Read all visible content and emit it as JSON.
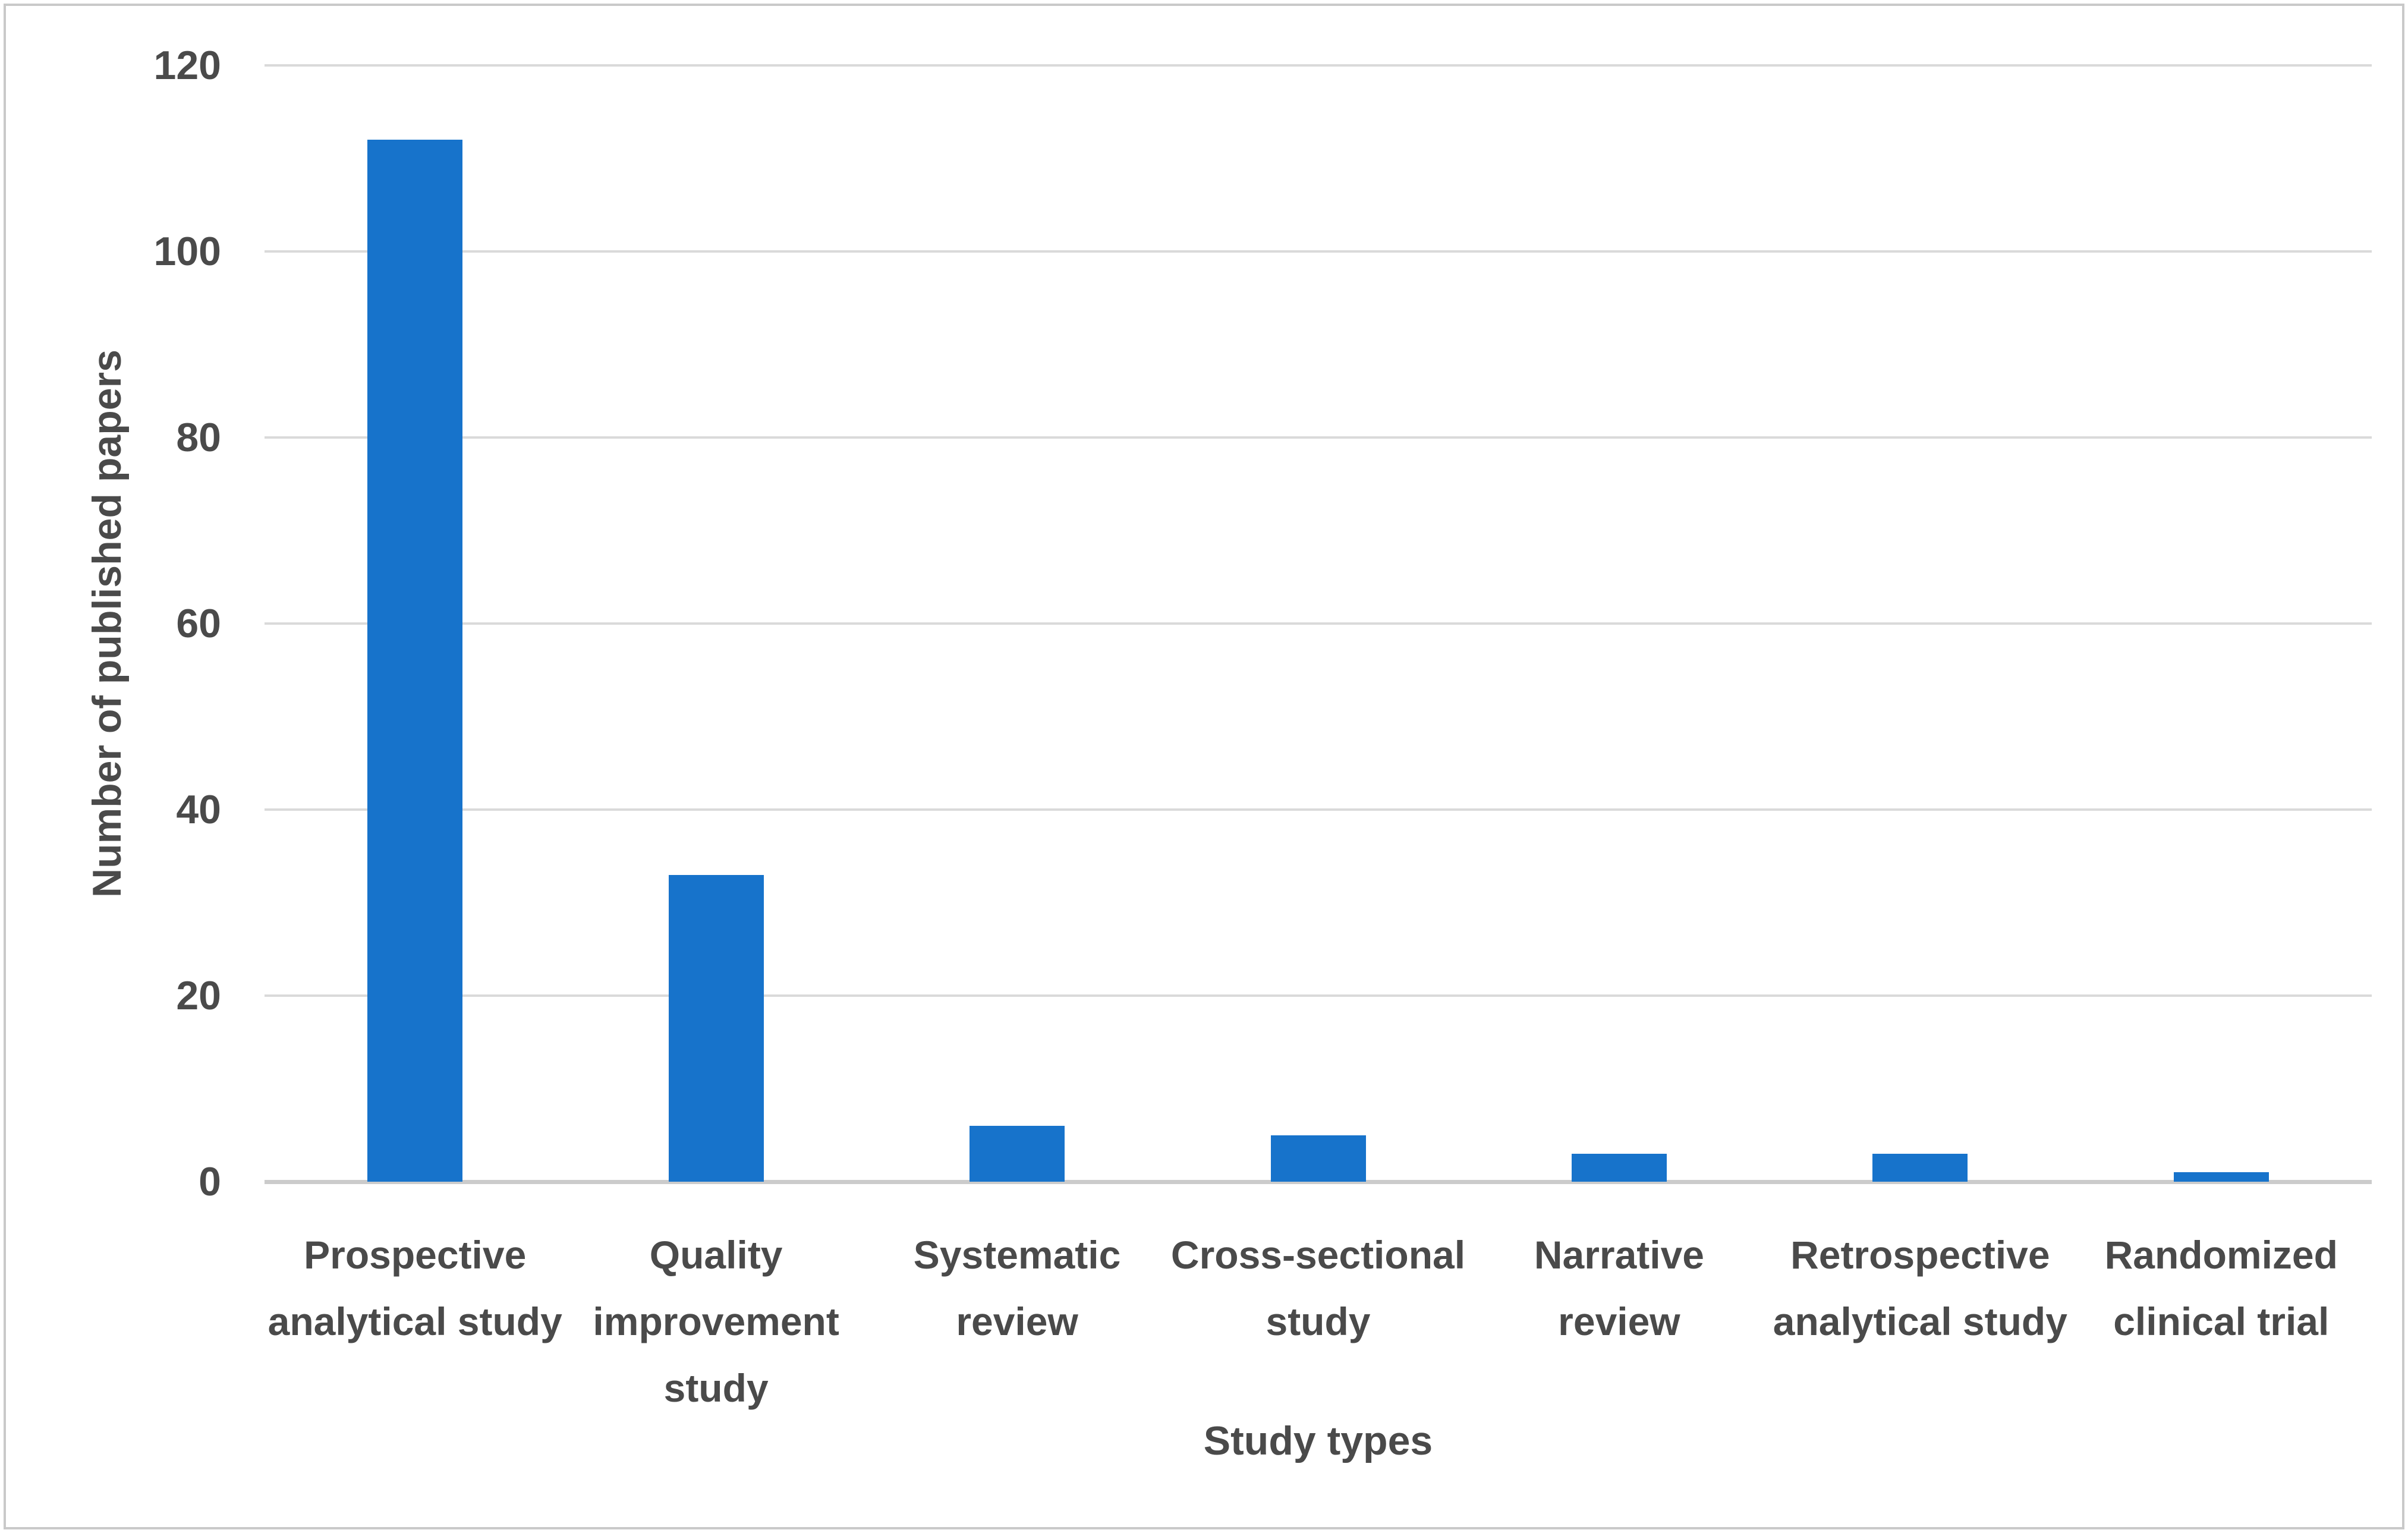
{
  "figure": {
    "background": "#FFFFFF",
    "border_color": "#C9C9C9"
  },
  "chart_data": {
    "type": "bar",
    "title": "",
    "categories": [
      "Prospective analytical study",
      "Quality improvement study",
      "Systematic review",
      "Cross-sectional study",
      "Narrative review",
      "Retrospective analytical study",
      "Randomized clinical trial"
    ],
    "category_lines": [
      [
        "Prospective",
        "analytical study"
      ],
      [
        "Quality",
        "improvement",
        "study"
      ],
      [
        "Systematic",
        "review"
      ],
      [
        "Cross-sectional",
        "study"
      ],
      [
        "Narrative",
        "review"
      ],
      [
        "Retrospective",
        "analytical study"
      ],
      [
        "Randomized",
        "clinical trial"
      ]
    ],
    "values": [
      112,
      33,
      6,
      5,
      3,
      3,
      1
    ],
    "xlabel": "Study types",
    "ylabel": "Number of published papers",
    "ylim": [
      0,
      120
    ],
    "yticks": [
      0,
      20,
      40,
      60,
      80,
      100,
      120
    ],
    "grid": true,
    "legend": "none",
    "bar_color": "#1773CB",
    "gridline_color": "#DADADA",
    "axis_line_color": "#CBCBCB",
    "text_color": "#4A4A4A"
  }
}
